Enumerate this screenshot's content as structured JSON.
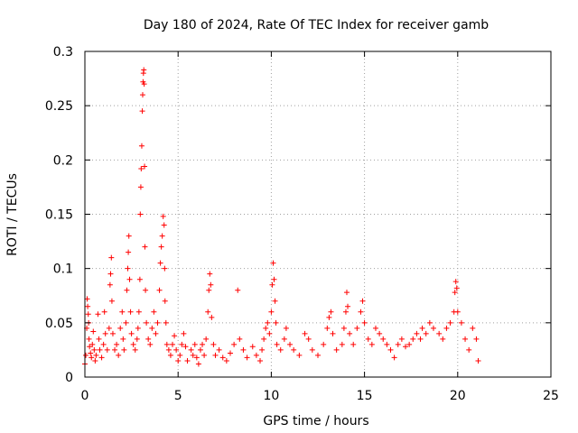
{
  "chart_data": {
    "type": "scatter",
    "title": "Day 180 of 2024, Rate Of TEC Index for receiver gamb",
    "xlabel": "GPS time / hours",
    "ylabel": "ROTI / TECUs",
    "xlim": [
      0,
      25
    ],
    "ylim": [
      0,
      0.3
    ],
    "x_ticks": [
      0,
      5,
      10,
      15,
      20,
      25
    ],
    "x_tick_labels": [
      "0",
      "5",
      "10",
      "15",
      "20",
      "25"
    ],
    "y_ticks": [
      0,
      0.05,
      0.1,
      0.15,
      0.2,
      0.25,
      0.3
    ],
    "y_tick_labels": [
      "0",
      "0.05",
      "0.1",
      "0.15",
      "0.2",
      "0.25",
      "0.3"
    ],
    "grid": true,
    "marker": "+",
    "color": "#ff0000",
    "series": [
      {
        "name": "ROTI",
        "points": [
          [
            0.0,
            0.012
          ],
          [
            0.05,
            0.02
          ],
          [
            0.1,
            0.045
          ],
          [
            0.12,
            0.072
          ],
          [
            0.15,
            0.065
          ],
          [
            0.18,
            0.058
          ],
          [
            0.2,
            0.05
          ],
          [
            0.22,
            0.035
          ],
          [
            0.25,
            0.028
          ],
          [
            0.3,
            0.022
          ],
          [
            0.35,
            0.018
          ],
          [
            0.4,
            0.03
          ],
          [
            0.45,
            0.042
          ],
          [
            0.5,
            0.025
          ],
          [
            0.55,
            0.015
          ],
          [
            0.6,
            0.02
          ],
          [
            0.7,
            0.058
          ],
          [
            0.75,
            0.035
          ],
          [
            0.8,
            0.025
          ],
          [
            0.9,
            0.018
          ],
          [
            1.0,
            0.03
          ],
          [
            1.05,
            0.06
          ],
          [
            1.1,
            0.04
          ],
          [
            1.2,
            0.025
          ],
          [
            1.3,
            0.045
          ],
          [
            1.35,
            0.085
          ],
          [
            1.38,
            0.095
          ],
          [
            1.42,
            0.11
          ],
          [
            1.45,
            0.07
          ],
          [
            1.5,
            0.04
          ],
          [
            1.6,
            0.025
          ],
          [
            1.7,
            0.03
          ],
          [
            1.8,
            0.02
          ],
          [
            1.9,
            0.045
          ],
          [
            2.0,
            0.06
          ],
          [
            2.05,
            0.035
          ],
          [
            2.1,
            0.025
          ],
          [
            2.2,
            0.05
          ],
          [
            2.25,
            0.08
          ],
          [
            2.3,
            0.1
          ],
          [
            2.33,
            0.115
          ],
          [
            2.36,
            0.13
          ],
          [
            2.4,
            0.09
          ],
          [
            2.45,
            0.06
          ],
          [
            2.5,
            0.04
          ],
          [
            2.6,
            0.03
          ],
          [
            2.7,
            0.025
          ],
          [
            2.8,
            0.035
          ],
          [
            2.85,
            0.045
          ],
          [
            2.9,
            0.06
          ],
          [
            2.95,
            0.09
          ],
          [
            2.97,
            0.15
          ],
          [
            3.0,
            0.175
          ],
          [
            3.02,
            0.192
          ],
          [
            3.05,
            0.213
          ],
          [
            3.08,
            0.245
          ],
          [
            3.1,
            0.26
          ],
          [
            3.12,
            0.272
          ],
          [
            3.14,
            0.28
          ],
          [
            3.16,
            0.283
          ],
          [
            3.18,
            0.27
          ],
          [
            3.2,
            0.194
          ],
          [
            3.22,
            0.12
          ],
          [
            3.25,
            0.08
          ],
          [
            3.3,
            0.05
          ],
          [
            3.4,
            0.035
          ],
          [
            3.5,
            0.03
          ],
          [
            3.6,
            0.045
          ],
          [
            3.7,
            0.06
          ],
          [
            3.8,
            0.04
          ],
          [
            3.9,
            0.05
          ],
          [
            4.0,
            0.08
          ],
          [
            4.05,
            0.105
          ],
          [
            4.1,
            0.12
          ],
          [
            4.15,
            0.13
          ],
          [
            4.2,
            0.148
          ],
          [
            4.25,
            0.14
          ],
          [
            4.28,
            0.1
          ],
          [
            4.3,
            0.07
          ],
          [
            4.35,
            0.05
          ],
          [
            4.4,
            0.03
          ],
          [
            4.5,
            0.025
          ],
          [
            4.6,
            0.02
          ],
          [
            4.7,
            0.03
          ],
          [
            4.8,
            0.038
          ],
          [
            4.9,
            0.025
          ],
          [
            5.0,
            0.015
          ],
          [
            5.1,
            0.02
          ],
          [
            5.2,
            0.03
          ],
          [
            5.3,
            0.04
          ],
          [
            5.4,
            0.028
          ],
          [
            5.5,
            0.015
          ],
          [
            5.7,
            0.025
          ],
          [
            5.8,
            0.02
          ],
          [
            5.9,
            0.03
          ],
          [
            6.0,
            0.018
          ],
          [
            6.1,
            0.012
          ],
          [
            6.2,
            0.025
          ],
          [
            6.3,
            0.03
          ],
          [
            6.4,
            0.02
          ],
          [
            6.5,
            0.035
          ],
          [
            6.6,
            0.06
          ],
          [
            6.65,
            0.08
          ],
          [
            6.7,
            0.095
          ],
          [
            6.75,
            0.085
          ],
          [
            6.8,
            0.055
          ],
          [
            6.9,
            0.03
          ],
          [
            7.0,
            0.02
          ],
          [
            7.2,
            0.025
          ],
          [
            7.4,
            0.018
          ],
          [
            7.6,
            0.015
          ],
          [
            7.8,
            0.022
          ],
          [
            8.0,
            0.03
          ],
          [
            8.2,
            0.08
          ],
          [
            8.3,
            0.035
          ],
          [
            8.5,
            0.025
          ],
          [
            8.7,
            0.018
          ],
          [
            9.0,
            0.028
          ],
          [
            9.2,
            0.02
          ],
          [
            9.4,
            0.015
          ],
          [
            9.5,
            0.025
          ],
          [
            9.6,
            0.035
          ],
          [
            9.7,
            0.045
          ],
          [
            9.8,
            0.05
          ],
          [
            9.9,
            0.04
          ],
          [
            10.0,
            0.06
          ],
          [
            10.05,
            0.085
          ],
          [
            10.1,
            0.105
          ],
          [
            10.15,
            0.09
          ],
          [
            10.2,
            0.07
          ],
          [
            10.25,
            0.05
          ],
          [
            10.3,
            0.03
          ],
          [
            10.5,
            0.025
          ],
          [
            10.7,
            0.035
          ],
          [
            10.8,
            0.045
          ],
          [
            11.0,
            0.03
          ],
          [
            11.2,
            0.025
          ],
          [
            11.5,
            0.02
          ],
          [
            11.8,
            0.04
          ],
          [
            12.0,
            0.035
          ],
          [
            12.2,
            0.025
          ],
          [
            12.5,
            0.02
          ],
          [
            12.8,
            0.03
          ],
          [
            13.0,
            0.045
          ],
          [
            13.1,
            0.055
          ],
          [
            13.2,
            0.06
          ],
          [
            13.3,
            0.04
          ],
          [
            13.5,
            0.025
          ],
          [
            13.8,
            0.03
          ],
          [
            13.9,
            0.045
          ],
          [
            14.0,
            0.06
          ],
          [
            14.05,
            0.078
          ],
          [
            14.1,
            0.065
          ],
          [
            14.2,
            0.04
          ],
          [
            14.4,
            0.03
          ],
          [
            14.6,
            0.045
          ],
          [
            14.8,
            0.06
          ],
          [
            14.9,
            0.07
          ],
          [
            15.0,
            0.05
          ],
          [
            15.2,
            0.035
          ],
          [
            15.4,
            0.03
          ],
          [
            15.6,
            0.045
          ],
          [
            15.8,
            0.04
          ],
          [
            16.0,
            0.035
          ],
          [
            16.2,
            0.03
          ],
          [
            16.4,
            0.025
          ],
          [
            16.6,
            0.018
          ],
          [
            16.8,
            0.03
          ],
          [
            17.0,
            0.035
          ],
          [
            17.2,
            0.028
          ],
          [
            17.4,
            0.03
          ],
          [
            17.6,
            0.035
          ],
          [
            17.8,
            0.04
          ],
          [
            18.0,
            0.035
          ],
          [
            18.1,
            0.045
          ],
          [
            18.3,
            0.04
          ],
          [
            18.5,
            0.05
          ],
          [
            18.7,
            0.045
          ],
          [
            19.0,
            0.04
          ],
          [
            19.2,
            0.035
          ],
          [
            19.4,
            0.045
          ],
          [
            19.6,
            0.05
          ],
          [
            19.8,
            0.06
          ],
          [
            19.85,
            0.078
          ],
          [
            19.9,
            0.088
          ],
          [
            19.95,
            0.082
          ],
          [
            20.0,
            0.06
          ],
          [
            20.2,
            0.05
          ],
          [
            20.4,
            0.035
          ],
          [
            20.6,
            0.025
          ],
          [
            20.8,
            0.045
          ],
          [
            21.0,
            0.035
          ],
          [
            21.1,
            0.015
          ]
        ]
      }
    ]
  }
}
